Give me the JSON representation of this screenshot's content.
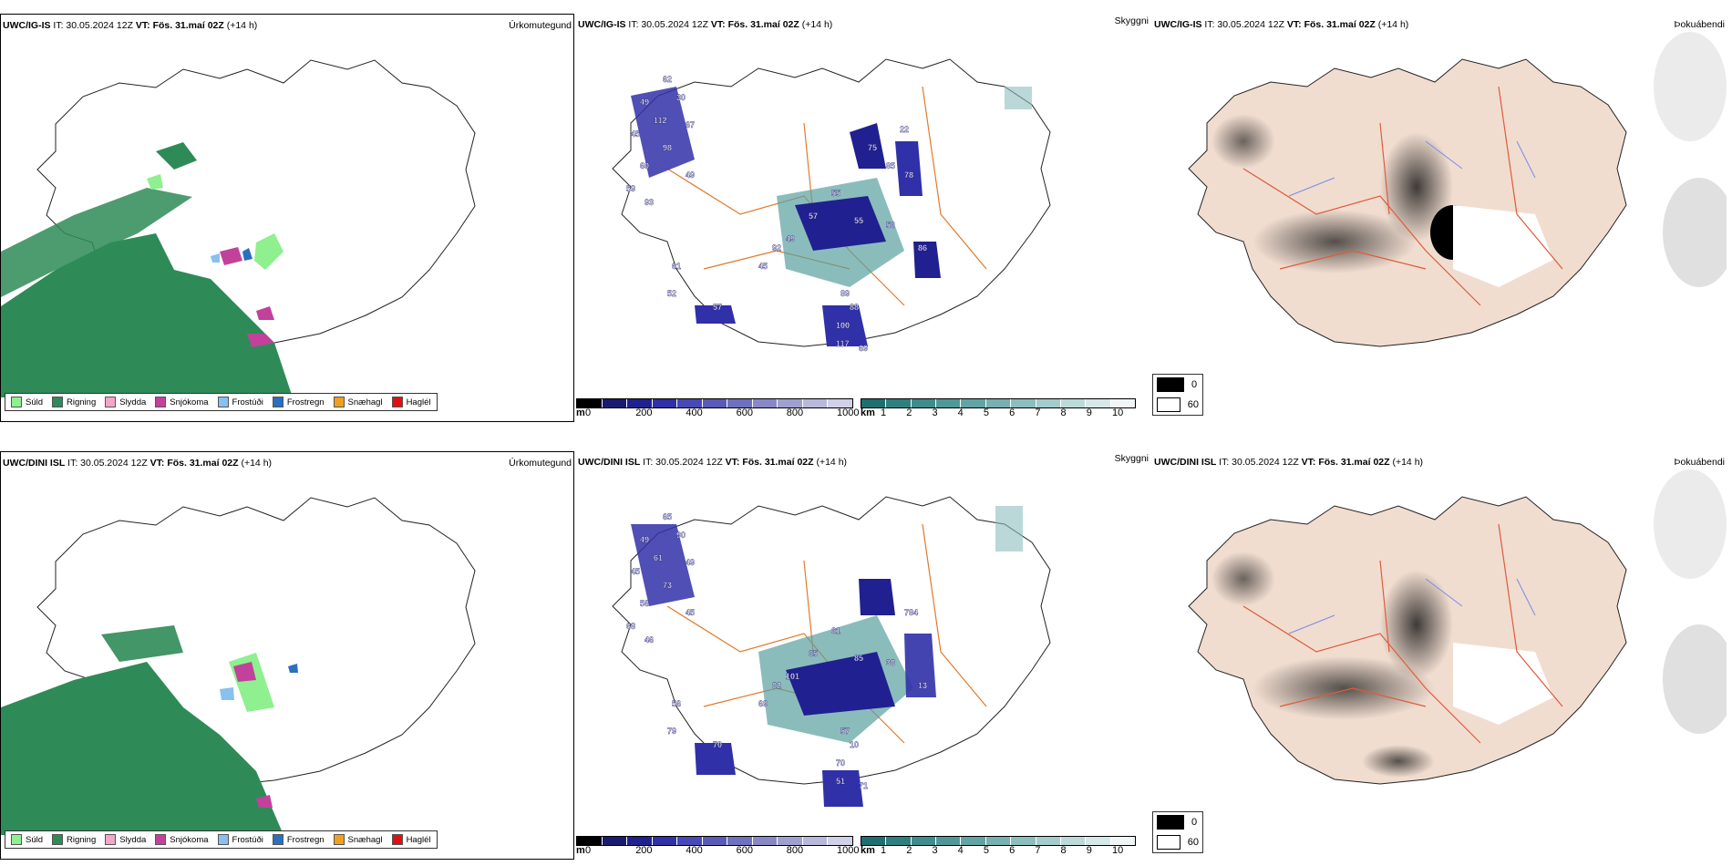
{
  "rows": [
    {
      "model": "UWC/IG-IS",
      "panels": [
        {
          "name": "Úrkomutegund",
          "it": "IT: 30.05.2024 12Z",
          "vt": "VT: Fös. 31.maí 02Z",
          "lead": "(+14 h)"
        },
        {
          "name": "Skyggni",
          "it": "IT: 30.05.2024 12Z",
          "vt": "VT: Fös. 31.maí 02Z",
          "lead": "(+14 h)"
        },
        {
          "name": "Þokuábendi",
          "it": "IT: 30.05.2024 12Z",
          "vt": "VT: Fös. 31.maí 02Z",
          "lead": "(+14 h)"
        }
      ],
      "vis_labels": [
        "62",
        "49",
        "30",
        "112",
        "67",
        "45",
        "98",
        "60",
        "59",
        "49",
        "93",
        "55",
        "57",
        "49",
        "55",
        "56",
        "78",
        "86",
        "61",
        "52",
        "57",
        "45",
        "92",
        "89",
        "88",
        "100",
        "117",
        "69",
        "75",
        "85",
        "22"
      ]
    },
    {
      "model": "UWC/DINI ISL",
      "panels": [
        {
          "name": "Úrkomutegund",
          "it": "IT: 30.05.2024 12Z",
          "vt": "VT: Fös. 31.maí 02Z",
          "lead": "(+14 h)"
        },
        {
          "name": "Skyggni",
          "it": "IT: 30.05.2024 12Z",
          "vt": "VT: Fös. 31.maí 02Z",
          "lead": "(+14 h)"
        },
        {
          "name": "Þokuábendi",
          "it": "IT: 30.05.2024 12Z",
          "vt": "VT: Fös. 31.maí 02Z",
          "lead": "(+14 h)"
        }
      ],
      "vis_labels": [
        "65",
        "49",
        "90",
        "61",
        "49",
        "45",
        "73",
        "56",
        "68",
        "45",
        "46",
        "61",
        "65",
        "101",
        "85",
        "38",
        "784",
        "13",
        "56",
        "79",
        "70",
        "69",
        "82",
        "57",
        "10",
        "70",
        "51",
        "71"
      ]
    }
  ],
  "precip_legend": [
    {
      "label": "Súld",
      "color": "#8ef08e"
    },
    {
      "label": "Rigning",
      "color": "#2e8b57"
    },
    {
      "label": "Slydda",
      "color": "#f4a6c8"
    },
    {
      "label": "Snjókoma",
      "color": "#c2419b"
    },
    {
      "label": "Frostúði",
      "color": "#88c0f0"
    },
    {
      "label": "Frostregn",
      "color": "#2a6fc0"
    },
    {
      "label": "Snæhagl",
      "color": "#f0a020"
    },
    {
      "label": "Haglél",
      "color": "#e01010"
    }
  ],
  "height_bar": {
    "unit": "m",
    "ticks": [
      "0",
      "200",
      "400",
      "600",
      "800",
      "1000"
    ],
    "colors": [
      "#000000",
      "#1a1a70",
      "#202090",
      "#3030a8",
      "#4848b8",
      "#5a5ab8",
      "#7070c0",
      "#8888c8",
      "#a0a0d0",
      "#b8b8dc",
      "#d0d0e8"
    ]
  },
  "vis_bar": {
    "unit": "km",
    "ticks": [
      "1",
      "2",
      "3",
      "4",
      "5",
      "6",
      "7",
      "8",
      "9",
      "10"
    ],
    "colors": [
      "#1e7070",
      "#2e8080",
      "#3e8c8c",
      "#509898",
      "#62a4a4",
      "#76b0b0",
      "#8cbebe",
      "#a4cccc",
      "#bcdada",
      "#d6e8e8",
      "#f0f6f6"
    ]
  },
  "cloud_legend": [
    {
      "label": "0",
      "color": "#000000"
    },
    {
      "label": "60",
      "color": "#ffffff"
    }
  ]
}
